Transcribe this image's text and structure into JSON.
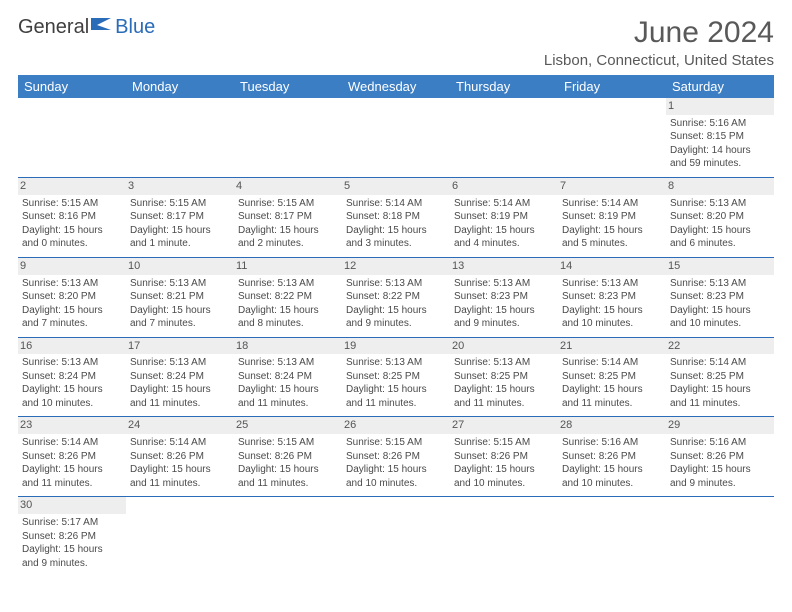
{
  "brand": {
    "part1": "General",
    "part2": "Blue",
    "flag_color": "#2a6cb8"
  },
  "title": "June 2024",
  "location": "Lisbon, Connecticut, United States",
  "headers": [
    "Sunday",
    "Monday",
    "Tuesday",
    "Wednesday",
    "Thursday",
    "Friday",
    "Saturday"
  ],
  "colors": {
    "header_bg": "#3b7ec4",
    "header_text": "#ffffff",
    "border": "#2a6cb8",
    "daynum_bg": "#eeeeee",
    "text": "#4a4a4a"
  },
  "weeks": [
    [
      null,
      null,
      null,
      null,
      null,
      null,
      {
        "d": "1",
        "sr": "Sunrise: 5:16 AM",
        "ss": "Sunset: 8:15 PM",
        "dl1": "Daylight: 14 hours",
        "dl2": "and 59 minutes."
      }
    ],
    [
      {
        "d": "2",
        "sr": "Sunrise: 5:15 AM",
        "ss": "Sunset: 8:16 PM",
        "dl1": "Daylight: 15 hours",
        "dl2": "and 0 minutes."
      },
      {
        "d": "3",
        "sr": "Sunrise: 5:15 AM",
        "ss": "Sunset: 8:17 PM",
        "dl1": "Daylight: 15 hours",
        "dl2": "and 1 minute."
      },
      {
        "d": "4",
        "sr": "Sunrise: 5:15 AM",
        "ss": "Sunset: 8:17 PM",
        "dl1": "Daylight: 15 hours",
        "dl2": "and 2 minutes."
      },
      {
        "d": "5",
        "sr": "Sunrise: 5:14 AM",
        "ss": "Sunset: 8:18 PM",
        "dl1": "Daylight: 15 hours",
        "dl2": "and 3 minutes."
      },
      {
        "d": "6",
        "sr": "Sunrise: 5:14 AM",
        "ss": "Sunset: 8:19 PM",
        "dl1": "Daylight: 15 hours",
        "dl2": "and 4 minutes."
      },
      {
        "d": "7",
        "sr": "Sunrise: 5:14 AM",
        "ss": "Sunset: 8:19 PM",
        "dl1": "Daylight: 15 hours",
        "dl2": "and 5 minutes."
      },
      {
        "d": "8",
        "sr": "Sunrise: 5:13 AM",
        "ss": "Sunset: 8:20 PM",
        "dl1": "Daylight: 15 hours",
        "dl2": "and 6 minutes."
      }
    ],
    [
      {
        "d": "9",
        "sr": "Sunrise: 5:13 AM",
        "ss": "Sunset: 8:20 PM",
        "dl1": "Daylight: 15 hours",
        "dl2": "and 7 minutes."
      },
      {
        "d": "10",
        "sr": "Sunrise: 5:13 AM",
        "ss": "Sunset: 8:21 PM",
        "dl1": "Daylight: 15 hours",
        "dl2": "and 7 minutes."
      },
      {
        "d": "11",
        "sr": "Sunrise: 5:13 AM",
        "ss": "Sunset: 8:22 PM",
        "dl1": "Daylight: 15 hours",
        "dl2": "and 8 minutes."
      },
      {
        "d": "12",
        "sr": "Sunrise: 5:13 AM",
        "ss": "Sunset: 8:22 PM",
        "dl1": "Daylight: 15 hours",
        "dl2": "and 9 minutes."
      },
      {
        "d": "13",
        "sr": "Sunrise: 5:13 AM",
        "ss": "Sunset: 8:23 PM",
        "dl1": "Daylight: 15 hours",
        "dl2": "and 9 minutes."
      },
      {
        "d": "14",
        "sr": "Sunrise: 5:13 AM",
        "ss": "Sunset: 8:23 PM",
        "dl1": "Daylight: 15 hours",
        "dl2": "and 10 minutes."
      },
      {
        "d": "15",
        "sr": "Sunrise: 5:13 AM",
        "ss": "Sunset: 8:23 PM",
        "dl1": "Daylight: 15 hours",
        "dl2": "and 10 minutes."
      }
    ],
    [
      {
        "d": "16",
        "sr": "Sunrise: 5:13 AM",
        "ss": "Sunset: 8:24 PM",
        "dl1": "Daylight: 15 hours",
        "dl2": "and 10 minutes."
      },
      {
        "d": "17",
        "sr": "Sunrise: 5:13 AM",
        "ss": "Sunset: 8:24 PM",
        "dl1": "Daylight: 15 hours",
        "dl2": "and 11 minutes."
      },
      {
        "d": "18",
        "sr": "Sunrise: 5:13 AM",
        "ss": "Sunset: 8:24 PM",
        "dl1": "Daylight: 15 hours",
        "dl2": "and 11 minutes."
      },
      {
        "d": "19",
        "sr": "Sunrise: 5:13 AM",
        "ss": "Sunset: 8:25 PM",
        "dl1": "Daylight: 15 hours",
        "dl2": "and 11 minutes."
      },
      {
        "d": "20",
        "sr": "Sunrise: 5:13 AM",
        "ss": "Sunset: 8:25 PM",
        "dl1": "Daylight: 15 hours",
        "dl2": "and 11 minutes."
      },
      {
        "d": "21",
        "sr": "Sunrise: 5:14 AM",
        "ss": "Sunset: 8:25 PM",
        "dl1": "Daylight: 15 hours",
        "dl2": "and 11 minutes."
      },
      {
        "d": "22",
        "sr": "Sunrise: 5:14 AM",
        "ss": "Sunset: 8:25 PM",
        "dl1": "Daylight: 15 hours",
        "dl2": "and 11 minutes."
      }
    ],
    [
      {
        "d": "23",
        "sr": "Sunrise: 5:14 AM",
        "ss": "Sunset: 8:26 PM",
        "dl1": "Daylight: 15 hours",
        "dl2": "and 11 minutes."
      },
      {
        "d": "24",
        "sr": "Sunrise: 5:14 AM",
        "ss": "Sunset: 8:26 PM",
        "dl1": "Daylight: 15 hours",
        "dl2": "and 11 minutes."
      },
      {
        "d": "25",
        "sr": "Sunrise: 5:15 AM",
        "ss": "Sunset: 8:26 PM",
        "dl1": "Daylight: 15 hours",
        "dl2": "and 11 minutes."
      },
      {
        "d": "26",
        "sr": "Sunrise: 5:15 AM",
        "ss": "Sunset: 8:26 PM",
        "dl1": "Daylight: 15 hours",
        "dl2": "and 10 minutes."
      },
      {
        "d": "27",
        "sr": "Sunrise: 5:15 AM",
        "ss": "Sunset: 8:26 PM",
        "dl1": "Daylight: 15 hours",
        "dl2": "and 10 minutes."
      },
      {
        "d": "28",
        "sr": "Sunrise: 5:16 AM",
        "ss": "Sunset: 8:26 PM",
        "dl1": "Daylight: 15 hours",
        "dl2": "and 10 minutes."
      },
      {
        "d": "29",
        "sr": "Sunrise: 5:16 AM",
        "ss": "Sunset: 8:26 PM",
        "dl1": "Daylight: 15 hours",
        "dl2": "and 9 minutes."
      }
    ],
    [
      {
        "d": "30",
        "sr": "Sunrise: 5:17 AM",
        "ss": "Sunset: 8:26 PM",
        "dl1": "Daylight: 15 hours",
        "dl2": "and 9 minutes."
      },
      null,
      null,
      null,
      null,
      null,
      null
    ]
  ]
}
